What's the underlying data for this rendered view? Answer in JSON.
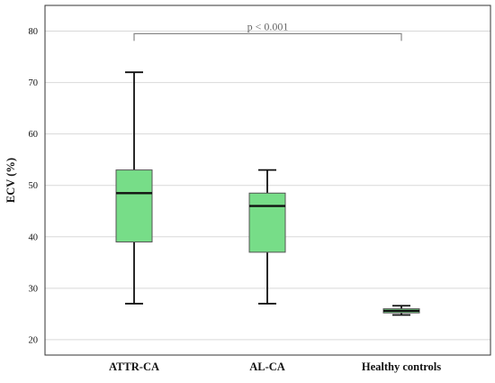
{
  "chart_data": {
    "type": "boxplot",
    "title": "",
    "xlabel": "",
    "ylabel": "ECV (%)",
    "ylim": [
      17,
      85
    ],
    "yticks": [
      20,
      30,
      40,
      50,
      60,
      70,
      80
    ],
    "grid": {
      "horizontal": true,
      "vertical": false
    },
    "box_color": "#77dd88",
    "categories": [
      "ATTR-CA",
      "AL-CA",
      "Healthy controls"
    ],
    "boxes": [
      {
        "category": "ATTR-CA",
        "min": 27,
        "q1": 39,
        "median": 48.5,
        "q3": 53,
        "max": 72
      },
      {
        "category": "AL-CA",
        "min": 27,
        "q1": 37,
        "median": 46,
        "q3": 48.5,
        "max": 53
      },
      {
        "category": "Healthy controls",
        "min": 24.8,
        "q1": 25.2,
        "median": 25.6,
        "q3": 26.0,
        "max": 26.6
      }
    ],
    "annotation": {
      "text": "p < 0.001",
      "from": "ATTR-CA",
      "to": "Healthy controls",
      "y": 79.5
    }
  }
}
